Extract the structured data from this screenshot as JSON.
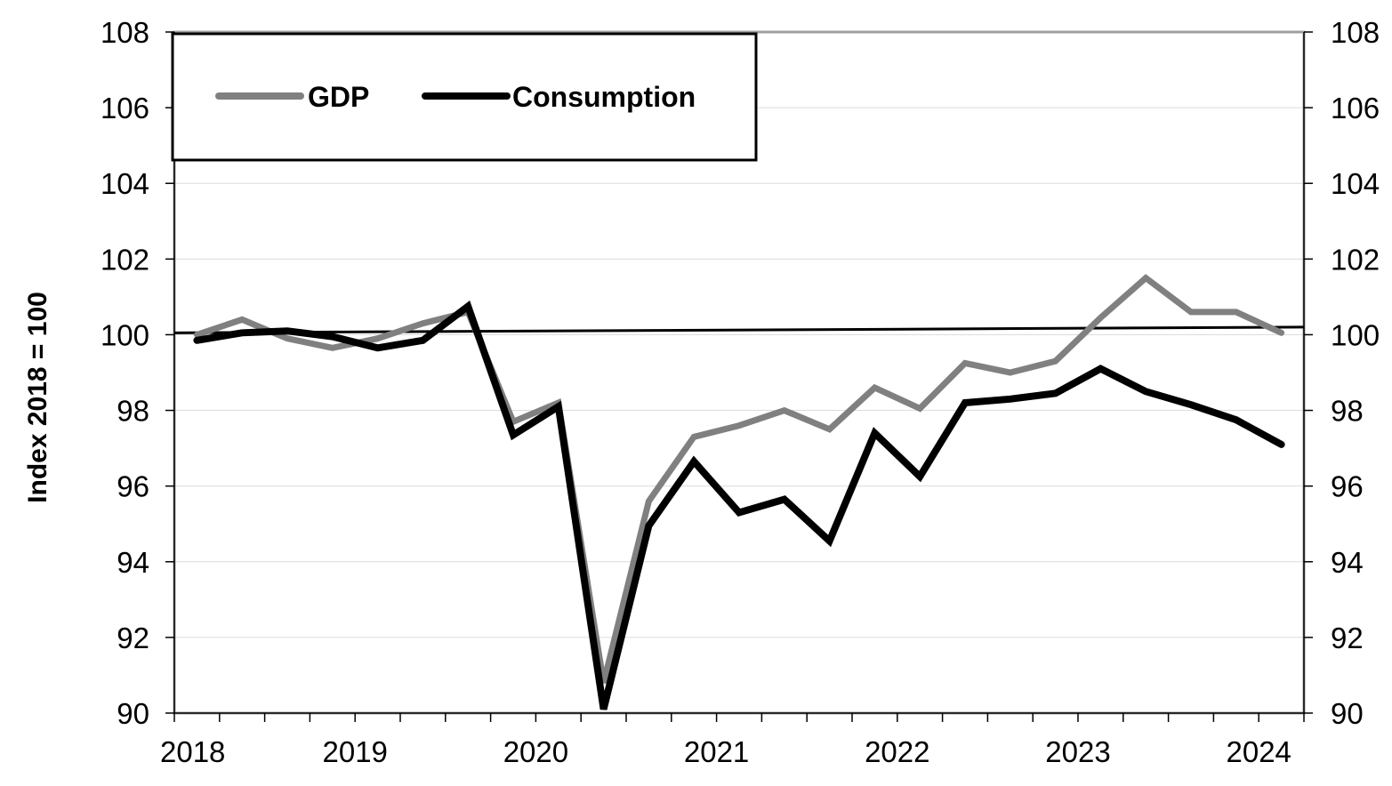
{
  "chart_data": {
    "type": "line",
    "ylabel": "Index 2018 = 100",
    "ylim": [
      90,
      108
    ],
    "yticks": [
      "90",
      "92",
      "94",
      "96",
      "98",
      "100",
      "102",
      "104",
      "106",
      "108"
    ],
    "right_yticks": [
      "90",
      "92",
      "94",
      "96",
      "98",
      "100",
      "102",
      "104",
      "106",
      "108"
    ],
    "x_tick_labels": [
      "2018",
      "2019",
      "2020",
      "2021",
      "2022",
      "2023",
      "2024"
    ],
    "x_start": 2018.0,
    "x_end": 2024.25,
    "grid": true,
    "legend_position": "top-left",
    "reference_line": {
      "start": 100.05,
      "end": 100.2,
      "color": "#000000"
    },
    "x": [
      2018.125,
      2018.375,
      2018.625,
      2018.875,
      2019.125,
      2019.375,
      2019.625,
      2019.875,
      2020.125,
      2020.375,
      2020.625,
      2020.875,
      2021.125,
      2021.375,
      2021.625,
      2021.875,
      2022.125,
      2022.375,
      2022.625,
      2022.875,
      2023.125,
      2023.375,
      2023.625,
      2023.875,
      2024.125
    ],
    "series": [
      {
        "name": "GDP",
        "color": "#808080",
        "values": [
          100.0,
          100.4,
          99.9,
          99.65,
          99.9,
          100.3,
          100.6,
          97.7,
          98.2,
          90.8,
          95.6,
          97.3,
          97.6,
          98.0,
          97.5,
          98.6,
          98.05,
          99.25,
          99.0,
          99.3,
          100.45,
          101.5,
          100.6,
          100.6,
          100.05
        ]
      },
      {
        "name": "Consumption",
        "color": "#000000",
        "values": [
          99.85,
          100.05,
          100.1,
          99.95,
          99.65,
          99.85,
          100.75,
          97.35,
          98.1,
          90.1,
          94.95,
          96.65,
          95.3,
          95.65,
          94.55,
          97.4,
          96.25,
          98.2,
          98.3,
          98.45,
          99.1,
          98.5,
          98.15,
          97.75,
          97.1
        ]
      }
    ]
  }
}
